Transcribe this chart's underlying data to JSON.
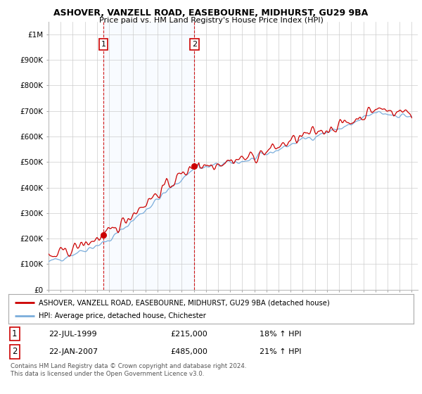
{
  "title": "ASHOVER, VANZELL ROAD, EASEBOURNE, MIDHURST, GU29 9BA",
  "subtitle": "Price paid vs. HM Land Registry's House Price Index (HPI)",
  "legend_line1": "ASHOVER, VANZELL ROAD, EASEBOURNE, MIDHURST, GU29 9BA (detached house)",
  "legend_line2": "HPI: Average price, detached house, Chichester",
  "transaction1_date": "22-JUL-1999",
  "transaction1_price": 215000,
  "transaction1_hpi": "18% ↑ HPI",
  "transaction2_date": "22-JAN-2007",
  "transaction2_price": 485000,
  "transaction2_hpi": "21% ↑ HPI",
  "footer": "Contains HM Land Registry data © Crown copyright and database right 2024.\nThis data is licensed under the Open Government Licence v3.0.",
  "hpi_color": "#7aaddb",
  "price_color": "#cc0000",
  "shade_color": "#ddeeff",
  "marker_color": "#cc0000",
  "background_color": "#ffffff",
  "grid_color": "#cccccc",
  "ylim": [
    0,
    1050000
  ],
  "yticks": [
    0,
    100000,
    200000,
    300000,
    400000,
    500000,
    600000,
    700000,
    800000,
    900000,
    1000000
  ],
  "ytick_labels": [
    "£0",
    "£100K",
    "£200K",
    "£300K",
    "£400K",
    "£500K",
    "£600K",
    "£700K",
    "£800K",
    "£900K",
    "£1M"
  ],
  "t1_year": 1999.542,
  "t2_year": 2007.042,
  "xstart": 1995,
  "xend": 2025.5
}
